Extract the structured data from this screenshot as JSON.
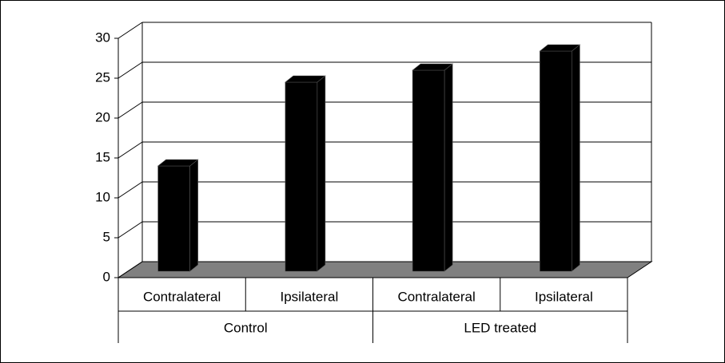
{
  "chart_data": {
    "type": "bar3d",
    "categories": [
      "Contralateral",
      "Ipsilateral",
      "Contralateral",
      "Ipsilateral"
    ],
    "groups": [
      "Control",
      "LED treated"
    ],
    "values": [
      13.2,
      23.7,
      25.2,
      27.6
    ],
    "color": "#000000",
    "floor_color": "#808080",
    "ylim": [
      0,
      30
    ],
    "yticks": [
      0,
      5,
      10,
      15,
      20,
      25,
      30
    ],
    "grid": true
  }
}
